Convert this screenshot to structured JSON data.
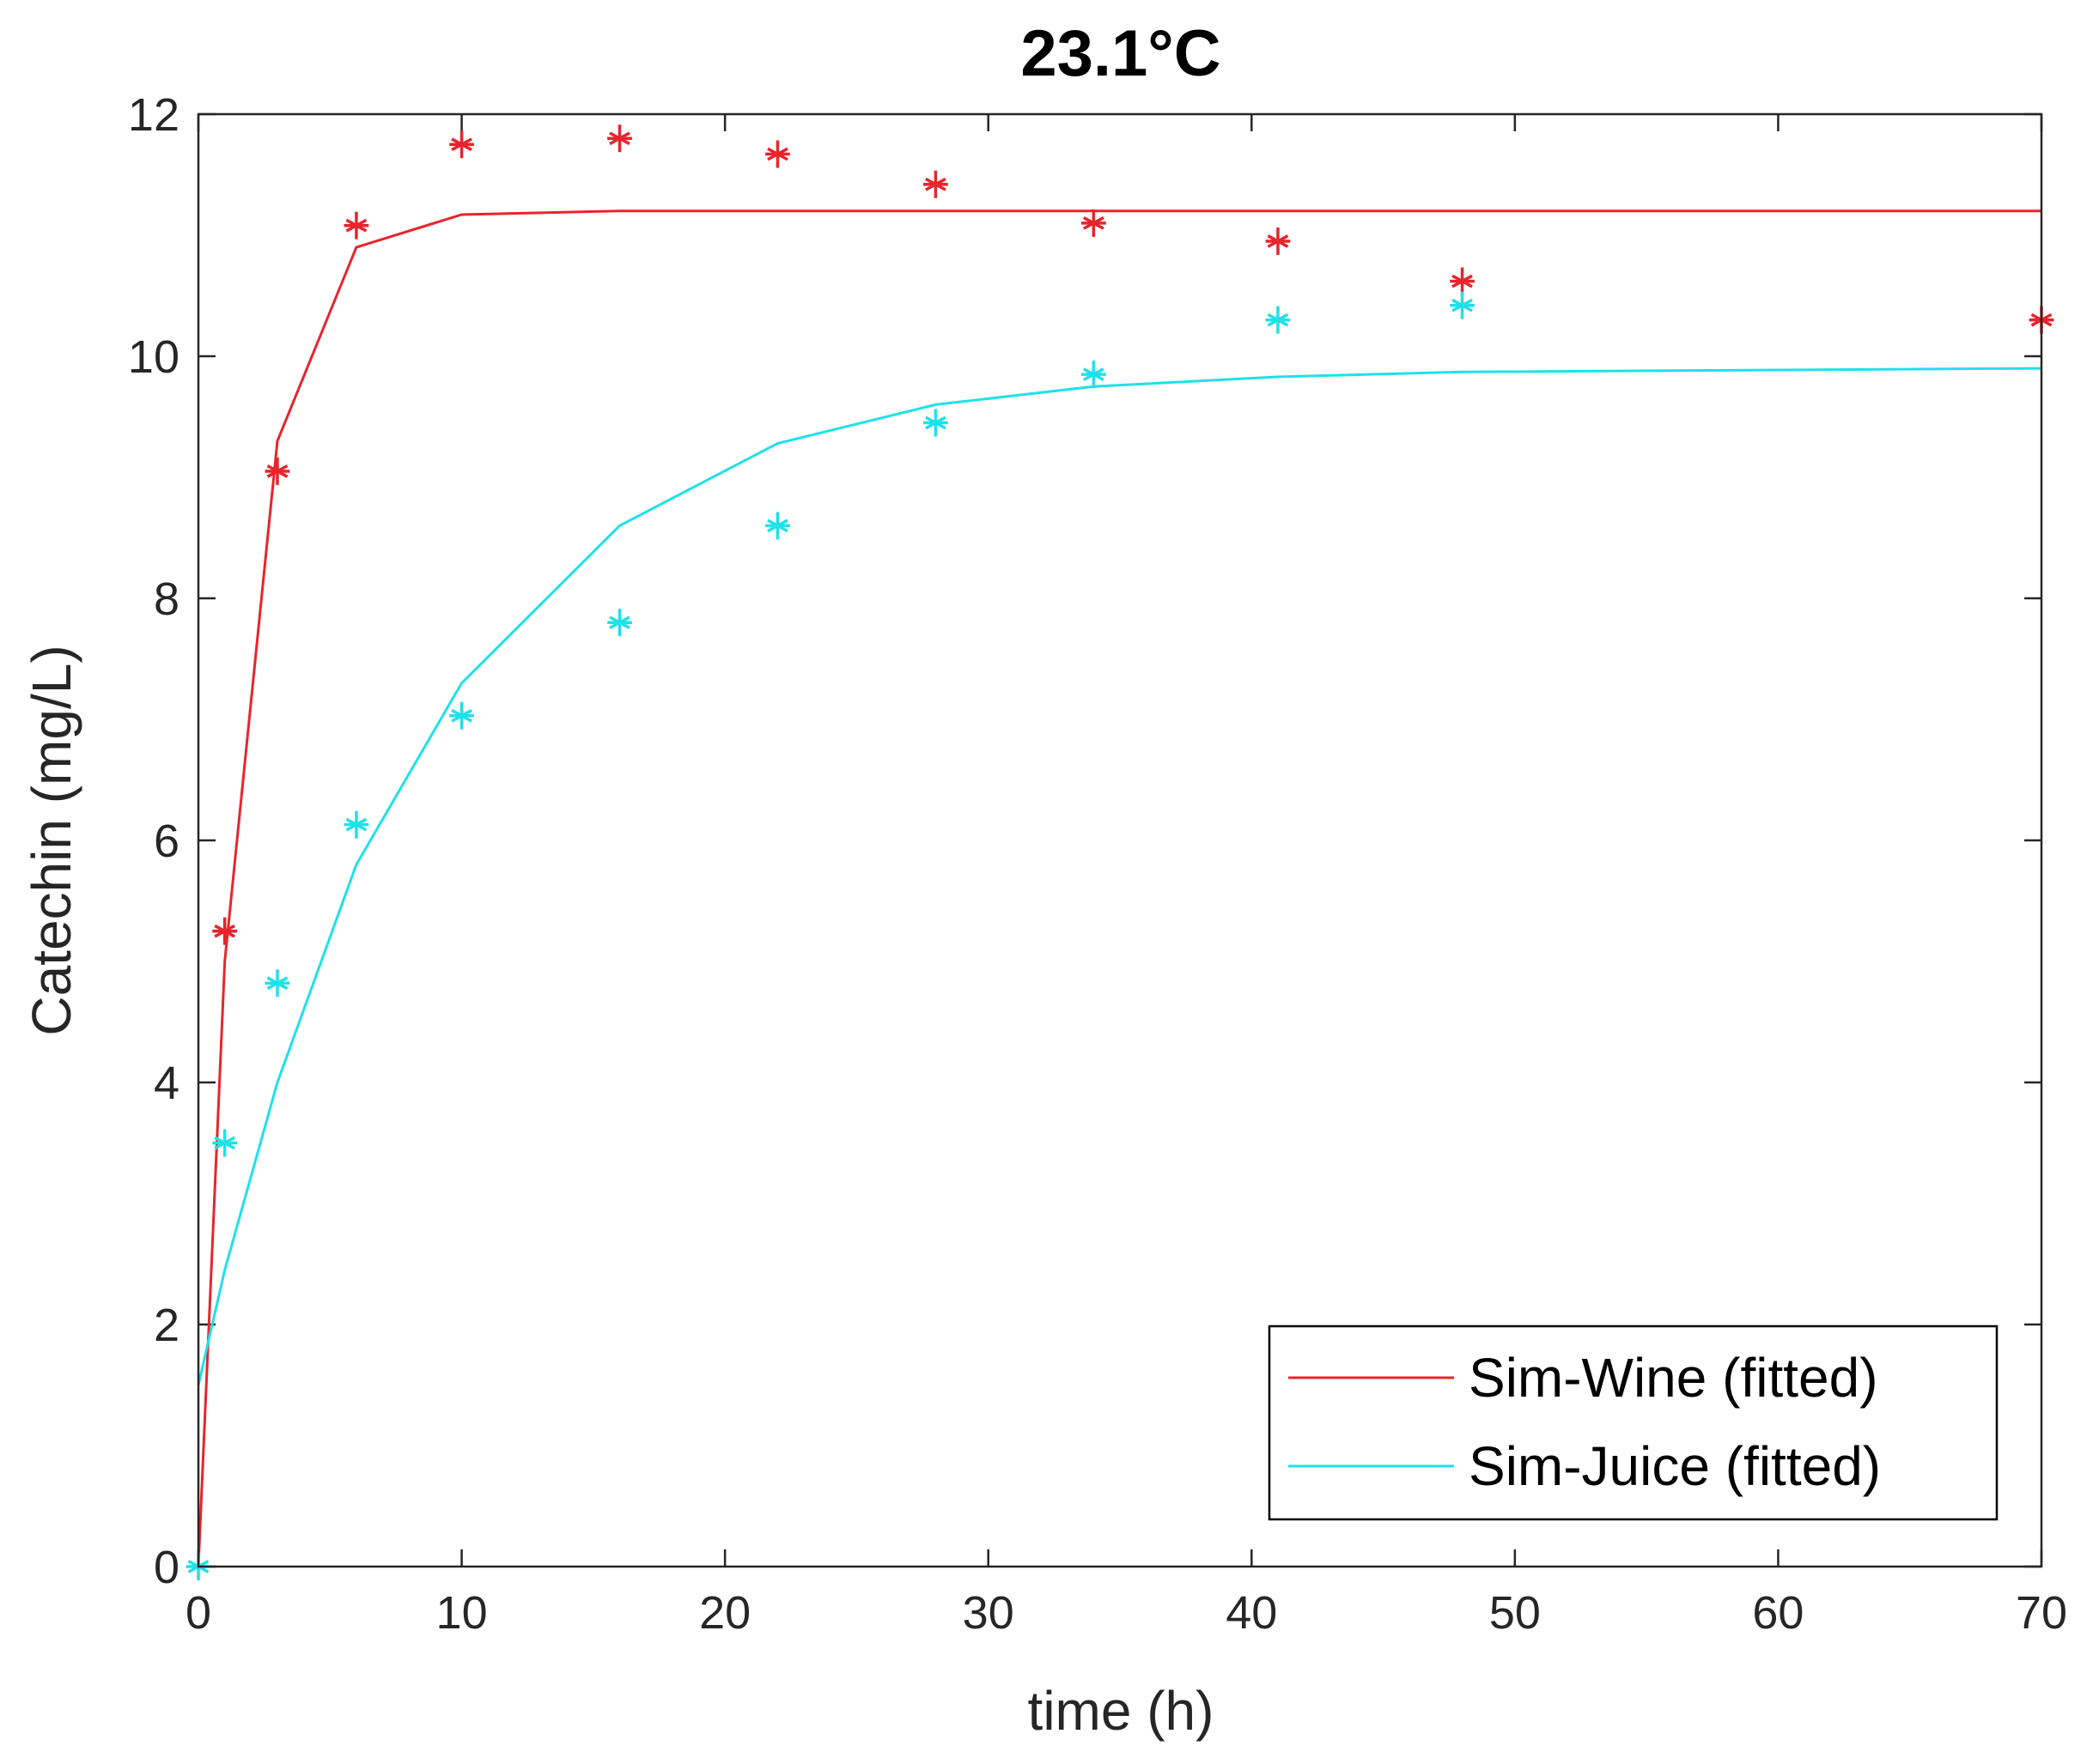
{
  "chart_data": {
    "type": "line",
    "title": "23.1°C",
    "xlabel": "time (h)",
    "ylabel": "Catechin (mg/L)",
    "xlim": [
      0,
      70
    ],
    "ylim": [
      0,
      12
    ],
    "xticks": [
      "0",
      "10",
      "20",
      "30",
      "40",
      "50",
      "60",
      "70"
    ],
    "yticks": [
      "0",
      "2",
      "4",
      "6",
      "8",
      "10",
      "12"
    ],
    "grid": false,
    "legend_position": "bottom-right",
    "series": [
      {
        "name": "Sim-Wine (fitted)",
        "color": "#e8242c",
        "marker": "asterisk",
        "fitted_x": [
          0,
          1,
          3,
          6,
          10,
          16,
          22,
          28,
          34,
          41,
          48,
          70
        ],
        "fitted_y": [
          0,
          5.0,
          9.3,
          10.9,
          11.17,
          11.2,
          11.2,
          11.2,
          11.2,
          11.2,
          11.2,
          11.2
        ],
        "points_x": [
          1,
          3,
          6,
          10,
          16,
          22,
          28,
          34,
          41,
          48,
          70
        ],
        "points_y": [
          5.25,
          9.05,
          11.08,
          11.75,
          11.8,
          11.67,
          11.42,
          11.1,
          10.95,
          10.62,
          10.3
        ]
      },
      {
        "name": "Sim-Juice (fitted)",
        "color": "#1fe1e8",
        "marker": "asterisk",
        "fitted_x": [
          0,
          1,
          3,
          6,
          10,
          16,
          22,
          28,
          34,
          41,
          48,
          70
        ],
        "fitted_y": [
          1.5,
          2.45,
          4.0,
          5.8,
          7.3,
          8.6,
          9.28,
          9.6,
          9.75,
          9.83,
          9.87,
          9.9
        ],
        "points_x": [
          0,
          1,
          3,
          6,
          10,
          16,
          22,
          28,
          34,
          41,
          48
        ],
        "points_y": [
          0,
          3.5,
          4.82,
          6.13,
          7.03,
          7.8,
          8.6,
          9.45,
          9.85,
          10.3,
          10.42
        ]
      }
    ]
  }
}
